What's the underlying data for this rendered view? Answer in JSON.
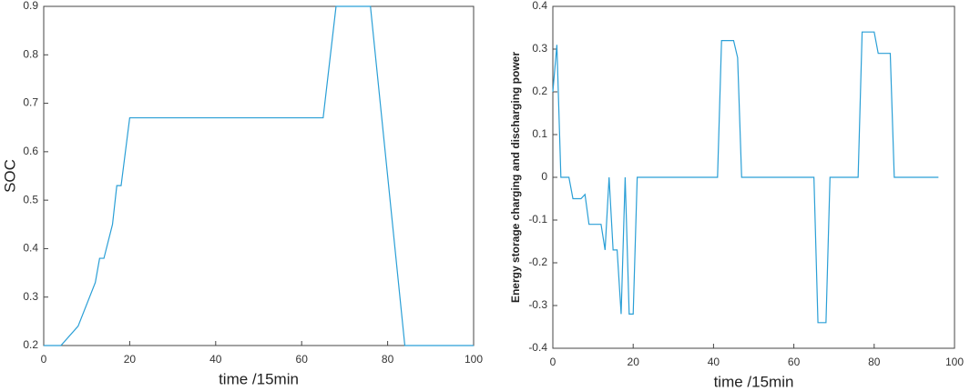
{
  "chart_data": [
    {
      "type": "line",
      "x_label": "time /15min",
      "y_label": "SOC",
      "color": "#2a9fd6",
      "x": [
        0,
        4,
        8,
        12,
        13,
        14,
        16,
        17,
        18,
        20,
        21,
        65,
        68,
        76,
        84,
        100
      ],
      "values": [
        0.2,
        0.2,
        0.24,
        0.33,
        0.38,
        0.38,
        0.45,
        0.53,
        0.53,
        0.67,
        0.67,
        0.67,
        0.9,
        0.9,
        0.2,
        0.2
      ],
      "xlim": [
        0,
        100
      ],
      "xticks": [
        0,
        20,
        40,
        60,
        80,
        100
      ],
      "ylim": [
        0.2,
        0.9
      ],
      "yticks": [
        0.2,
        0.3,
        0.4,
        0.5,
        0.6,
        0.7,
        0.8,
        0.9
      ]
    },
    {
      "type": "line",
      "x_label": "time /15min",
      "y_label": "Energy storage charging and discharging power",
      "color": "#2a9fd6",
      "x": [
        0,
        1,
        2,
        4,
        5,
        7,
        8,
        9,
        12,
        13,
        14,
        15,
        16,
        17,
        18,
        19,
        20,
        21,
        41,
        42,
        45,
        46,
        47,
        65,
        66,
        68,
        69,
        76,
        77,
        80,
        81,
        84,
        85,
        96
      ],
      "values": [
        0.2,
        0.31,
        0,
        0,
        -0.05,
        -0.05,
        -0.04,
        -0.11,
        -0.11,
        -0.17,
        0,
        -0.17,
        -0.17,
        -0.32,
        0,
        -0.32,
        -0.32,
        0,
        0,
        0.32,
        0.32,
        0.28,
        0,
        0,
        -0.34,
        -0.34,
        0,
        0,
        0.34,
        0.34,
        0.29,
        0.29,
        0,
        0
      ],
      "xlim": [
        0,
        100
      ],
      "xticks": [
        0,
        20,
        40,
        60,
        80,
        100
      ],
      "ylim": [
        -0.4,
        0.4
      ],
      "yticks": [
        -0.4,
        -0.3,
        -0.2,
        -0.1,
        0,
        0.1,
        0.2,
        0.3,
        0.4
      ]
    }
  ]
}
